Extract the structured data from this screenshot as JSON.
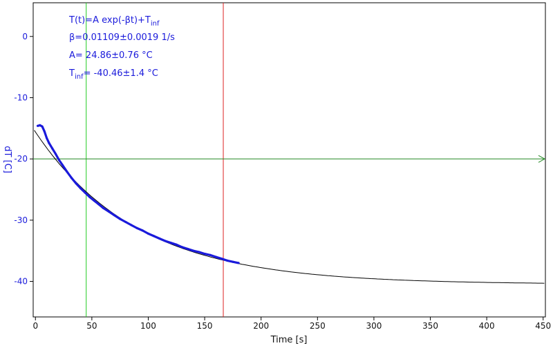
{
  "chart_data": {
    "type": "scatter",
    "xlabel": "Time [s]",
    "ylabel": "dT [C]",
    "xlim": [
      -2,
      452
    ],
    "ylim": [
      -45.8,
      5.5
    ],
    "x_ticks": [
      0,
      50,
      100,
      150,
      200,
      250,
      300,
      350,
      400,
      450
    ],
    "y_ticks": [
      0,
      -10,
      -20,
      -30,
      -40
    ],
    "grid": false,
    "annotation_lines": [
      {
        "base": "T(t)=A exp(-βt)+T",
        "sub": "inf"
      },
      {
        "base": "β=0.01109±0.0019 1/s",
        "sub": ""
      },
      {
        "base": "A= 24.86±0.76 °C",
        "sub": ""
      },
      {
        "base": "T",
        "sub": "inf",
        "tail": "= -40.46±1.4 °C"
      }
    ],
    "fit": {
      "A": 24.86,
      "beta": 0.01109,
      "T_inf": -40.46,
      "x_range": [
        -1,
        452
      ]
    },
    "measured_points": [
      [
        2,
        -14.6
      ],
      [
        4,
        -14.5
      ],
      [
        6,
        -14.7
      ],
      [
        8,
        -15.5
      ],
      [
        10,
        -16.6
      ],
      [
        12,
        -17.4
      ],
      [
        15,
        -18.3
      ],
      [
        18,
        -19.2
      ],
      [
        21,
        -20.2
      ],
      [
        24,
        -21.0
      ],
      [
        28,
        -22.1
      ],
      [
        32,
        -23.1
      ],
      [
        36,
        -24.0
      ],
      [
        40,
        -24.8
      ],
      [
        44,
        -25.5
      ],
      [
        48,
        -26.2
      ],
      [
        52,
        -26.8
      ],
      [
        56,
        -27.4
      ],
      [
        60,
        -28.0
      ],
      [
        65,
        -28.6
      ],
      [
        70,
        -29.2
      ],
      [
        75,
        -29.8
      ],
      [
        80,
        -30.3
      ],
      [
        85,
        -30.8
      ],
      [
        90,
        -31.3
      ],
      [
        95,
        -31.7
      ],
      [
        100,
        -32.2
      ],
      [
        105,
        -32.6
      ],
      [
        110,
        -33.0
      ],
      [
        115,
        -33.4
      ],
      [
        120,
        -33.7
      ],
      [
        125,
        -34.0
      ],
      [
        130,
        -34.4
      ],
      [
        135,
        -34.7
      ],
      [
        140,
        -35.0
      ],
      [
        145,
        -35.2
      ],
      [
        150,
        -35.5
      ],
      [
        155,
        -35.7
      ],
      [
        160,
        -36.0
      ],
      [
        165,
        -36.3
      ],
      [
        170,
        -36.6
      ],
      [
        175,
        -36.8
      ],
      [
        180,
        -37.0
      ]
    ],
    "cursors": {
      "vertical": [
        {
          "x": 45,
          "color": "#22cc22"
        },
        {
          "x": 166.5,
          "color": "#dd2222"
        }
      ],
      "horizontal": {
        "y": -20,
        "color": "#228822"
      }
    },
    "colors": {
      "data": "#1a1adb",
      "fit": "#000000",
      "axis_text": "#1a1adb",
      "annotation": "#1a1adb"
    }
  }
}
